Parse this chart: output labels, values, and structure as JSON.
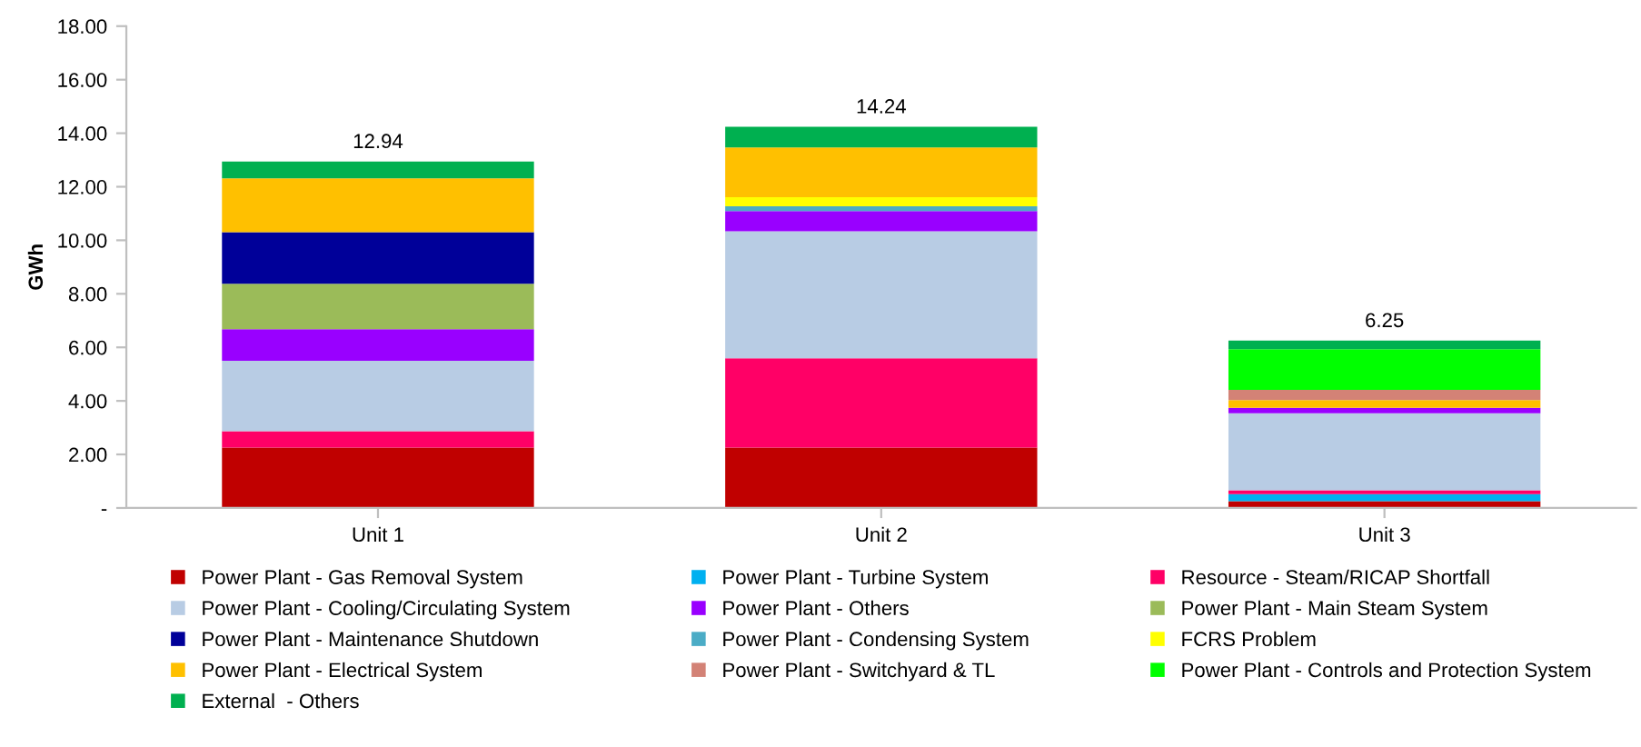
{
  "chart_data": {
    "type": "bar",
    "stacked": true,
    "ylabel": "GWh",
    "categories": [
      "Unit 1",
      "Unit 2",
      "Unit 3"
    ],
    "ylim": [
      0,
      18
    ],
    "yticks": [
      {
        "value": 0,
        "label": "-"
      },
      {
        "value": 2,
        "label": "2.00"
      },
      {
        "value": 4,
        "label": "4.00"
      },
      {
        "value": 6,
        "label": "6.00"
      },
      {
        "value": 8,
        "label": "8.00"
      },
      {
        "value": 10,
        "label": "10.00"
      },
      {
        "value": 12,
        "label": "12.00"
      },
      {
        "value": 14,
        "label": "14.00"
      },
      {
        "value": 16,
        "label": "16.00"
      },
      {
        "value": 18,
        "label": "18.00"
      }
    ],
    "grid": false,
    "legend": "bottom",
    "totals": [
      "12.94",
      "14.24",
      "6.25"
    ],
    "series": [
      {
        "name": "Power Plant - Gas Removal System",
        "color": "#c00000",
        "values": [
          2.26,
          2.26,
          0.25
        ]
      },
      {
        "name": "Power Plant - Turbine System",
        "color": "#00b0f0",
        "values": [
          null,
          null,
          0.27
        ]
      },
      {
        "name": "Resource - Steam/RICAP Shortfall",
        "color": "#ff0066",
        "values": [
          0.61,
          3.33,
          0.14
        ]
      },
      {
        "name": "Power Plant - Cooling/Circulating System",
        "color": "#b8cce4",
        "values": [
          2.63,
          4.75,
          2.88
        ]
      },
      {
        "name": "Power Plant - Others",
        "color": "#9900ff",
        "values": [
          1.18,
          0.75,
          0.2
        ]
      },
      {
        "name": "Power Plant - Main Steam System",
        "color": "#9bbb59",
        "values": [
          1.7,
          null,
          null
        ]
      },
      {
        "name": "Power Plant - Maintenance Shutdown",
        "color": "#000099",
        "values": [
          1.92,
          null,
          null
        ]
      },
      {
        "name": "Power Plant - Condensing System",
        "color": "#4bacc6",
        "values": [
          null,
          0.18,
          null
        ]
      },
      {
        "name": "FCRS Problem",
        "color": "#ffff00",
        "values": [
          null,
          0.34,
          null
        ]
      },
      {
        "name": "Power Plant - Electrical System",
        "color": "#ffc000",
        "values": [
          2.01,
          1.86,
          0.29
        ]
      },
      {
        "name": "Power Plant - Switchyard & TL",
        "color": "#d38276",
        "values": [
          null,
          null,
          0.38
        ]
      },
      {
        "name": "Power Plant - Controls and Protection System",
        "color": "#00ff00",
        "values": [
          null,
          null,
          1.52
        ]
      },
      {
        "name": "External  - Others",
        "color": "#00b050",
        "values": [
          0.63,
          0.77,
          0.32
        ]
      }
    ]
  }
}
